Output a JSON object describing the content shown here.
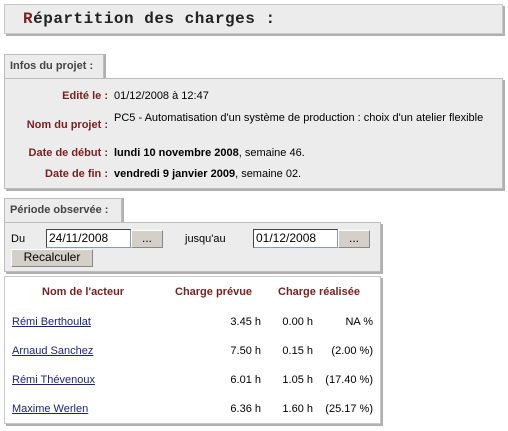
{
  "title": {
    "first_letter": "R",
    "rest": "épartition des charges :"
  },
  "project_section": {
    "tab_label": "Infos du projet :",
    "edited_label": "Edité le :",
    "edited_value": "01/12/2008 à 12:47",
    "name_label": "Nom du projet :",
    "name_value": "PC5 - Automatisation d'un système de production : choix d'un atelier flexible",
    "start_label": "Date de début :",
    "start_date": "lundi 10 novembre 2008",
    "start_week": ", semaine 46.",
    "end_label": "Date de fin :",
    "end_date": "vendredi 9 janvier 2009",
    "end_week": ", semaine 02."
  },
  "period_section": {
    "tab_label": "Période observée :",
    "from_label": "Du",
    "from_value": "24/11/2008",
    "from_button": "...",
    "to_label": "jusqu'au",
    "to_value": "01/12/2008",
    "to_button": "...",
    "recalc_button": "Recalculer"
  },
  "table": {
    "headers": [
      "Nom de l'acteur",
      "Charge prévue",
      "Charge réalisée"
    ],
    "rows": [
      {
        "name": "Rémi Berthoulat",
        "planned": "3.45 h",
        "done": "0.00 h",
        "pct": "NA %"
      },
      {
        "name": "Arnaud Sanchez",
        "planned": "7.50 h",
        "done": "0.15 h",
        "pct": "(2.00 %)"
      },
      {
        "name": "Rémi Thévenoux",
        "planned": "6.01 h",
        "done": "1.05 h",
        "pct": "(17.40 %)"
      },
      {
        "name": "Maxime Werlen",
        "planned": "6.36 h",
        "done": "1.60 h",
        "pct": "(25.17 %)"
      }
    ]
  }
}
